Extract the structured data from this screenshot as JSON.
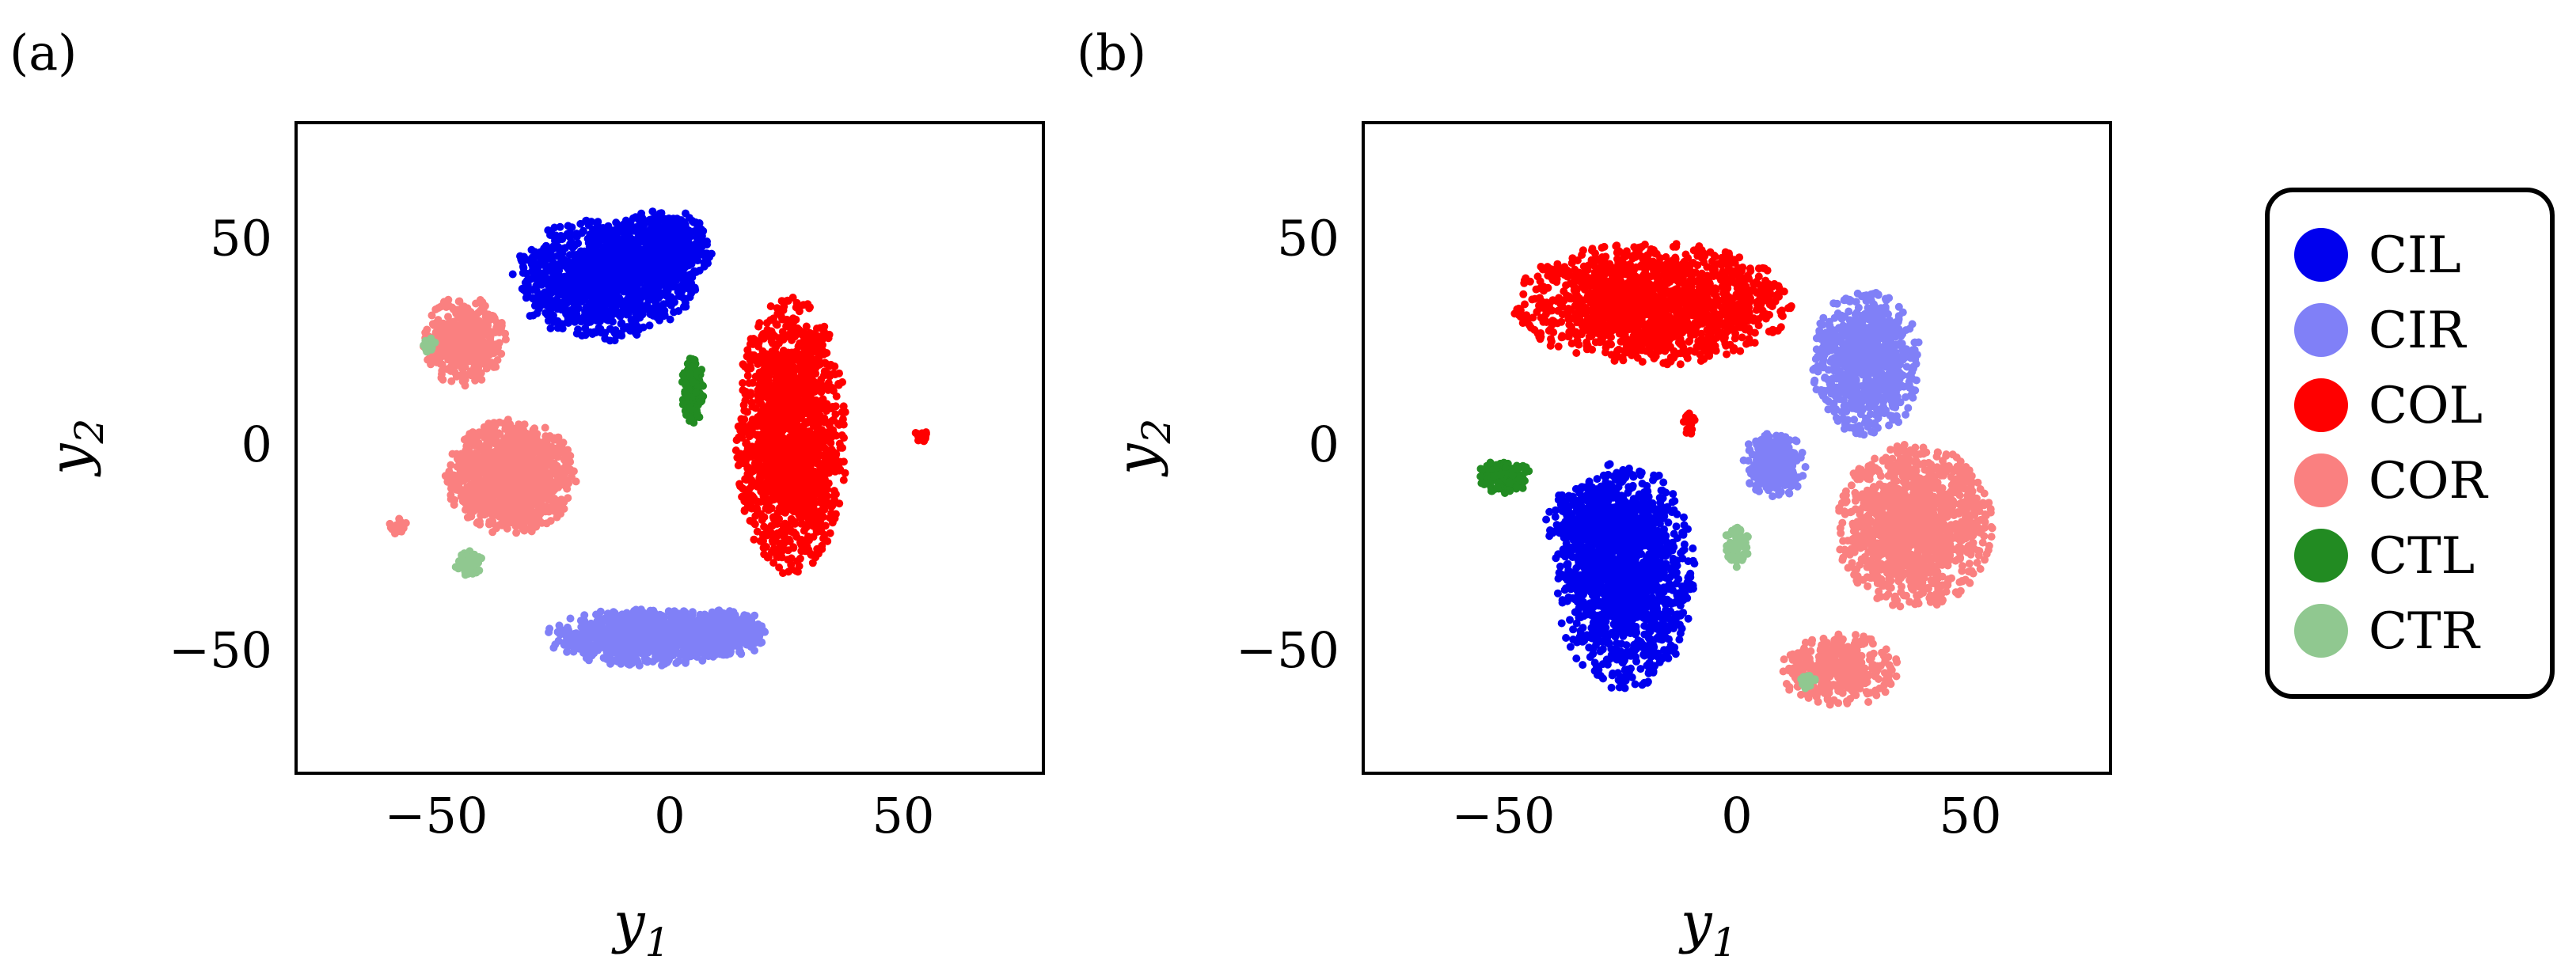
{
  "legend": {
    "items": [
      {
        "label": "CIL",
        "color": "#0000ee"
      },
      {
        "label": "CIR",
        "color": "#8080f7"
      },
      {
        "label": "COL",
        "color": "#ff0000"
      },
      {
        "label": "COR",
        "color": "#fa8080"
      },
      {
        "label": "CTL",
        "color": "#228b22"
      },
      {
        "label": "CTR",
        "color": "#90c890"
      }
    ]
  },
  "chart_data": [
    {
      "type": "scatter",
      "panel_label": "(a)",
      "xlabel": "y",
      "xlabel_sub": "1",
      "ylabel": "y",
      "ylabel_sub": "2",
      "xlim": [
        -80,
        80
      ],
      "ylim": [
        -80,
        78
      ],
      "xticks": [
        -50,
        0,
        50
      ],
      "yticks": [
        -50,
        0,
        50
      ],
      "xtick_labels": [
        "−50",
        "0",
        "50"
      ],
      "ytick_labels": [
        "−50",
        "0",
        "50"
      ],
      "grid": false,
      "series": [
        {
          "name": "CIL",
          "color": "#0000ee",
          "clusters": [
            {
              "cx": -14,
              "cy": 40,
              "rx": 20,
              "ry": 15,
              "n": 1200
            },
            {
              "cx": -2,
              "cy": 48,
              "rx": 12,
              "ry": 9,
              "n": 500
            }
          ]
        },
        {
          "name": "CIR",
          "color": "#8080f7",
          "clusters": [
            {
              "cx": -5,
              "cy": -47,
              "rx": 22,
              "ry": 7,
              "n": 900
            },
            {
              "cx": 12,
              "cy": -46,
              "rx": 9,
              "ry": 6,
              "n": 300
            }
          ]
        },
        {
          "name": "COL",
          "color": "#ff0000",
          "clusters": [
            {
              "cx": 26,
              "cy": 2,
              "rx": 12,
              "ry": 34,
              "n": 1600
            },
            {
              "cx": 54,
              "cy": 2,
              "rx": 1.5,
              "ry": 1.5,
              "n": 30
            }
          ]
        },
        {
          "name": "COR",
          "color": "#fa8080",
          "clusters": [
            {
              "cx": -34,
              "cy": -8,
              "rx": 14,
              "ry": 14,
              "n": 1200
            },
            {
              "cx": -44,
              "cy": 25,
              "rx": 9,
              "ry": 11,
              "n": 450
            },
            {
              "cx": -58,
              "cy": -20,
              "rx": 2,
              "ry": 2,
              "n": 25
            }
          ]
        },
        {
          "name": "CTL",
          "color": "#228b22",
          "clusters": [
            {
              "cx": 5,
              "cy": 13,
              "rx": 2.5,
              "ry": 8,
              "n": 200
            }
          ]
        },
        {
          "name": "CTR",
          "color": "#90c890",
          "clusters": [
            {
              "cx": -43,
              "cy": -29,
              "rx": 3,
              "ry": 3,
              "n": 70
            },
            {
              "cx": -52,
              "cy": 24,
              "rx": 2,
              "ry": 2,
              "n": 20
            }
          ]
        }
      ]
    },
    {
      "type": "scatter",
      "panel_label": "(b)",
      "xlabel": "y",
      "xlabel_sub": "1",
      "ylabel": "y",
      "ylabel_sub": "2",
      "xlim": [
        -80,
        80
      ],
      "ylim": [
        -80,
        78
      ],
      "xticks": [
        -50,
        0,
        50
      ],
      "yticks": [
        -50,
        0,
        50
      ],
      "xtick_labels": [
        "−50",
        "0",
        "50"
      ],
      "ytick_labels": [
        "−50",
        "0",
        "50"
      ],
      "grid": false,
      "series": [
        {
          "name": "CIL",
          "color": "#0000ee",
          "clusters": [
            {
              "cx": -24,
              "cy": -32,
              "rx": 15,
              "ry": 28,
              "n": 1500
            },
            {
              "cx": -32,
              "cy": -20,
              "rx": 9,
              "ry": 12,
              "n": 300
            }
          ]
        },
        {
          "name": "CIR",
          "color": "#8080f7",
          "clusters": [
            {
              "cx": 28,
              "cy": 20,
              "rx": 12,
              "ry": 18,
              "n": 800
            },
            {
              "cx": 8,
              "cy": -5,
              "rx": 7,
              "ry": 8,
              "n": 300
            }
          ]
        },
        {
          "name": "COL",
          "color": "#ff0000",
          "clusters": [
            {
              "cx": -18,
              "cy": 34,
              "rx": 30,
              "ry": 15,
              "n": 1600
            },
            {
              "cx": -10,
              "cy": 5,
              "rx": 1.5,
              "ry": 3,
              "n": 20
            }
          ]
        },
        {
          "name": "COR",
          "color": "#fa8080",
          "clusters": [
            {
              "cx": 38,
              "cy": -20,
              "rx": 17,
              "ry": 20,
              "n": 1300
            },
            {
              "cx": 22,
              "cy": -55,
              "rx": 13,
              "ry": 9,
              "n": 400
            }
          ]
        },
        {
          "name": "CTL",
          "color": "#228b22",
          "clusters": [
            {
              "cx": -50,
              "cy": -8,
              "rx": 6,
              "ry": 4,
              "n": 180
            }
          ]
        },
        {
          "name": "CTR",
          "color": "#90c890",
          "clusters": [
            {
              "cx": 0,
              "cy": -25,
              "rx": 3,
              "ry": 5,
              "n": 70
            },
            {
              "cx": 15,
              "cy": -58,
              "rx": 2,
              "ry": 2,
              "n": 20
            }
          ]
        }
      ]
    }
  ]
}
